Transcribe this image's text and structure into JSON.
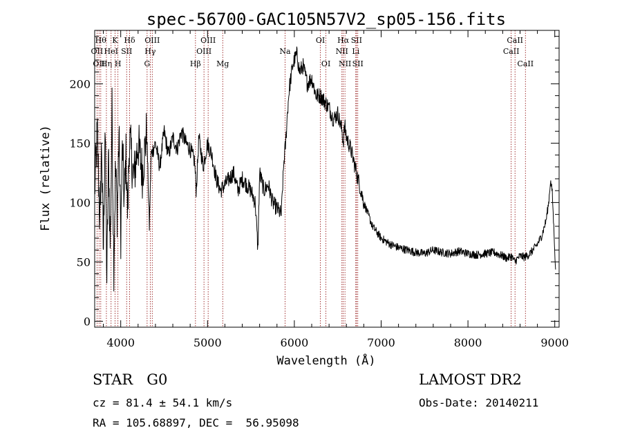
{
  "chart_data": {
    "type": "line",
    "title": "spec-56700-GAC105N57V2_sp05-156.fits",
    "xlabel": "Wavelength (Å)",
    "ylabel": "Flux (relative)",
    "xlim": [
      3700,
      9050
    ],
    "ylim": [
      -5,
      245
    ],
    "xticks": [
      4000,
      5000,
      6000,
      7000,
      8000,
      9000
    ],
    "yticks": [
      0,
      50,
      100,
      150,
      200
    ],
    "grid": false,
    "series": [
      {
        "x": [
          3700,
          3730,
          3760,
          3780,
          3800,
          3820,
          3840,
          3860,
          3880,
          3900,
          3920,
          3940,
          3960,
          3980,
          4000,
          4020,
          4040,
          4060,
          4080,
          4100,
          4150,
          4200,
          4250,
          4300,
          4330,
          4350,
          4400,
          4450,
          4500,
          4550,
          4600,
          4650,
          4700,
          4750,
          4800,
          4850,
          4870,
          4900,
          4950,
          5000,
          5050,
          5100,
          5150,
          5200,
          5250,
          5300,
          5350,
          5400,
          5450,
          5500,
          5550,
          5580,
          5600,
          5650,
          5700,
          5750,
          5800,
          5850,
          5880,
          5900,
          5920,
          5940,
          5960,
          5980,
          6000,
          6030,
          6060,
          6100,
          6150,
          6200,
          6250,
          6300,
          6350,
          6400,
          6450,
          6500,
          6550,
          6563,
          6580,
          6600,
          6650,
          6700,
          6750,
          6800,
          6850,
          6900,
          6950,
          7000,
          7100,
          7200,
          7300,
          7400,
          7500,
          7600,
          7700,
          7800,
          7900,
          8000,
          8100,
          8200,
          8300,
          8400,
          8450,
          8500,
          8540,
          8560,
          8600,
          8650,
          8700,
          8750,
          8800,
          8850,
          8900,
          8930,
          8950,
          8970,
          9000,
          9010
        ],
        "y": [
          110,
          160,
          80,
          150,
          55,
          170,
          35,
          140,
          60,
          180,
          45,
          130,
          90,
          160,
          70,
          150,
          100,
          140,
          90,
          155,
          120,
          150,
          125,
          160,
          80,
          140,
          150,
          130,
          160,
          140,
          155,
          145,
          160,
          150,
          145,
          135,
          110,
          155,
          130,
          150,
          140,
          120,
          110,
          115,
          120,
          125,
          110,
          120,
          115,
          110,
          100,
          60,
          125,
          110,
          115,
          100,
          95,
          90,
          135,
          150,
          175,
          195,
          205,
          215,
          220,
          225,
          210,
          215,
          200,
          205,
          190,
          190,
          185,
          180,
          170,
          175,
          160,
          150,
          165,
          155,
          145,
          130,
          115,
          100,
          90,
          80,
          75,
          70,
          65,
          62,
          60,
          58,
          57,
          60,
          58,
          57,
          59,
          57,
          56,
          57,
          58,
          55,
          53,
          55,
          50,
          52,
          55,
          54,
          56,
          60,
          65,
          72,
          85,
          100,
          118,
          110,
          60,
          40
        ]
      }
    ],
    "line_labels": [
      {
        "wl": 3727,
        "label": "OII",
        "row": 2
      },
      {
        "wl": 3750,
        "label": "OII",
        "row": 3
      },
      {
        "wl": 3770,
        "label": "Hθ",
        "row": 1
      },
      {
        "wl": 3835,
        "label": "Hη",
        "row": 3
      },
      {
        "wl": 3889,
        "label": "HeI",
        "row": 2
      },
      {
        "wl": 3934,
        "label": "K",
        "row": 1
      },
      {
        "wl": 3968,
        "label": "H",
        "row": 3
      },
      {
        "wl": 4068,
        "label": "SII",
        "row": 2
      },
      {
        "wl": 4102,
        "label": "Hδ",
        "row": 1
      },
      {
        "wl": 4304,
        "label": "G",
        "row": 3
      },
      {
        "wl": 4340,
        "label": "Hγ",
        "row": 2
      },
      {
        "wl": 4363,
        "label": "OIII",
        "row": 1
      },
      {
        "wl": 4861,
        "label": "Hβ",
        "row": 3
      },
      {
        "wl": 4959,
        "label": "OIII",
        "row": 2
      },
      {
        "wl": 5007,
        "label": "OIII",
        "row": 1
      },
      {
        "wl": 5175,
        "label": "Mg",
        "row": 3
      },
      {
        "wl": 5893,
        "label": "Na",
        "row": 2
      },
      {
        "wl": 6300,
        "label": "OI",
        "row": 1
      },
      {
        "wl": 6364,
        "label": "OI",
        "row": 3
      },
      {
        "wl": 6548,
        "label": "NII",
        "row": 2
      },
      {
        "wl": 6563,
        "label": "Hα",
        "row": 1
      },
      {
        "wl": 6583,
        "label": "NII",
        "row": 3
      },
      {
        "wl": 6708,
        "label": "Li",
        "row": 2
      },
      {
        "wl": 6716,
        "label": "SII",
        "row": 1
      },
      {
        "wl": 6731,
        "label": "SII",
        "row": 3
      },
      {
        "wl": 8498,
        "label": "CaII",
        "row": 2
      },
      {
        "wl": 8542,
        "label": "CaII",
        "row": 1
      },
      {
        "wl": 8662,
        "label": "CaII",
        "row": 3
      }
    ]
  },
  "info": {
    "class_line": "STAR   G0",
    "cz_line": "cz = 81.4 ± 54.1 km/s",
    "radec_line": "RA = 105.68897, DEC =  56.95098",
    "survey": "LAMOST DR2",
    "obs_date": "Obs-Date: 20140211"
  },
  "colors": {
    "spectrum": "#000000",
    "line_markers": "#8b0000",
    "axes": "#000000"
  }
}
